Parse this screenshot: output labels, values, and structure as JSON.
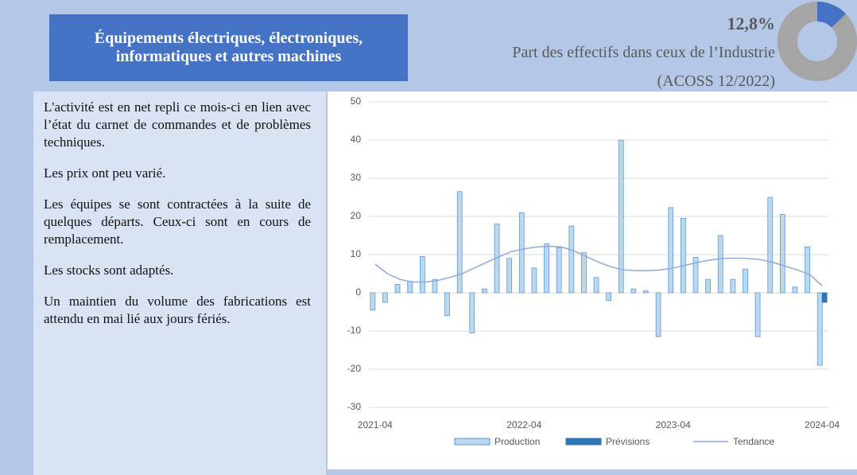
{
  "header": {
    "title_lines": [
      "Équipements électriques, électroniques,",
      "informatiques et autres machines"
    ]
  },
  "share": {
    "value": 12.8,
    "value_label": "12,8%",
    "label": "Part des effectifs dans ceux de l’Industrie",
    "source": "(ACOSS 12/2022)"
  },
  "paragraphs": [
    "L'activité est en net repli ce mois-ci en lien avec l’état du carnet de commandes et de problèmes techniques.",
    "Les prix ont peu varié.",
    "Les équipes se sont contractées à la suite de quelques départs. Ceux-ci sont en cours de remplacement.",
    "Les stocks sont adaptés.",
    "Un maintien du volume des fabrications est attendu en mai lié aux jours fériés."
  ],
  "chart_data": {
    "type": "bar",
    "categories": [
      "2021-04",
      null,
      null,
      null,
      null,
      null,
      null,
      null,
      null,
      null,
      null,
      null,
      "2022-04",
      null,
      null,
      null,
      null,
      null,
      null,
      null,
      null,
      null,
      null,
      null,
      "2023-04",
      null,
      null,
      null,
      null,
      null,
      null,
      null,
      null,
      null,
      null,
      null,
      "2024-04"
    ],
    "series": [
      {
        "name": "Production",
        "type": "bar",
        "color": "#bdd7ee",
        "values": [
          -4.5,
          -2.5,
          2.2,
          3,
          9.5,
          3.5,
          -6,
          26.5,
          -10.5,
          1,
          18,
          9,
          21,
          6.5,
          12.8,
          11.8,
          17.5,
          10.5,
          4,
          -2,
          40,
          1,
          0.5,
          -11.5,
          22.3,
          19.5,
          9.3,
          3.5,
          15,
          3.5,
          6.2,
          -11.5,
          25,
          20.5,
          1.5,
          12,
          -19
        ]
      },
      {
        "name": "Prévisions",
        "type": "bar",
        "color": "#2e75b6",
        "values": [
          null,
          null,
          null,
          null,
          null,
          null,
          null,
          null,
          null,
          null,
          null,
          null,
          null,
          null,
          null,
          null,
          null,
          null,
          null,
          null,
          null,
          null,
          null,
          null,
          null,
          null,
          null,
          null,
          null,
          null,
          null,
          null,
          null,
          null,
          null,
          null,
          -2.5
        ]
      },
      {
        "name": "Tendance",
        "type": "line",
        "color": "#8faadc",
        "values": [
          7.5,
          5,
          3.5,
          2.8,
          2.8,
          3.2,
          4,
          5,
          6.5,
          8,
          9.5,
          10.8,
          11.5,
          12,
          12.2,
          12,
          11,
          9.5,
          8,
          6.8,
          6,
          5.8,
          5.8,
          6,
          6.5,
          7.2,
          8,
          8.6,
          9,
          9.1,
          9,
          8.7,
          8,
          7,
          6,
          4.8,
          1.8
        ]
      }
    ],
    "ylim": [
      -30,
      50
    ],
    "yticks": [
      -30,
      -20,
      -10,
      0,
      10,
      20,
      30,
      40,
      50
    ],
    "grid": true,
    "legend": "bottom"
  }
}
